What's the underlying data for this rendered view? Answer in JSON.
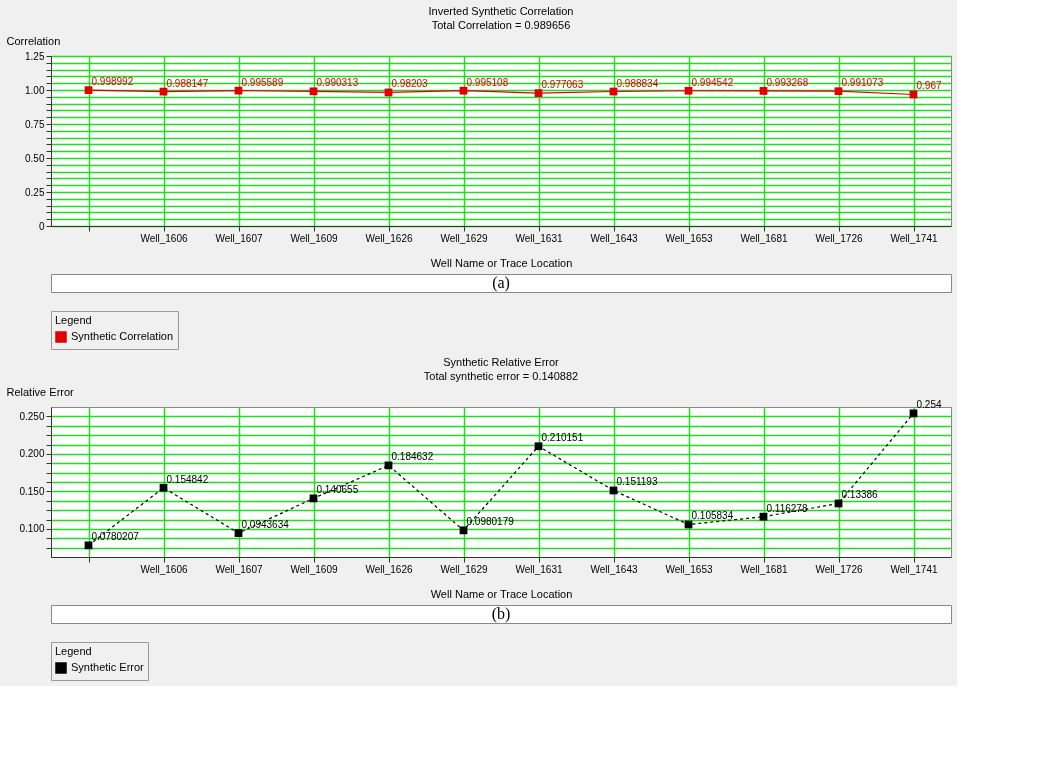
{
  "chart_data": [
    {
      "type": "line",
      "title": "Inverted Synthetic Correlation",
      "subtitle": "Total Correlation = 0.989656",
      "xlabel": "Well Name or Trace Location",
      "ylabel": "Correlation",
      "legend_title": "Legend",
      "categories": [
        null,
        "Well_1606",
        "Well_1607",
        "Well_1609",
        "Well_1626",
        "Well_1629",
        "Well_1631",
        "Well_1643",
        "Well_1653",
        "Well_1681",
        "Well_1726",
        "Well_1741"
      ],
      "series": [
        {
          "name": "Synthetic Correlation",
          "color": "#e00000",
          "values": [
            0.998992,
            0.988147,
            0.995589,
            0.990313,
            0.98203,
            0.995108,
            0.977063,
            0.988834,
            0.994542,
            0.993268,
            0.991073,
            0.967
          ]
        }
      ],
      "ylim": [
        0,
        1.25
      ],
      "yticks": [
        0,
        {
          "value": 0.05,
          "label": null
        },
        {
          "value": 0.1,
          "label": null
        },
        {
          "value": 0.15,
          "label": null
        },
        {
          "value": 0.2,
          "label": null
        },
        0.25,
        {
          "value": 0.3,
          "label": null
        },
        {
          "value": 0.35,
          "label": null
        },
        {
          "value": 0.4,
          "label": null
        },
        {
          "value": 0.45,
          "label": null
        },
        {
          "value": 0.5,
          "label": "0.50"
        },
        {
          "value": 0.55,
          "label": null
        },
        {
          "value": 0.6,
          "label": null
        },
        {
          "value": 0.65,
          "label": null
        },
        {
          "value": 0.7,
          "label": null
        },
        0.75,
        {
          "value": 0.8,
          "label": null
        },
        {
          "value": 0.85,
          "label": null
        },
        {
          "value": 0.9,
          "label": null
        },
        {
          "value": 0.95,
          "label": null
        },
        {
          "value": 1,
          "label": "1.00"
        },
        {
          "value": 1.05,
          "label": null
        },
        {
          "value": 1.1,
          "label": null
        },
        {
          "value": 1.15,
          "label": null
        },
        {
          "value": 1.2,
          "label": null
        },
        1.25
      ],
      "grid": true,
      "legend": "bottom left",
      "marker": "square",
      "line_style": "solid",
      "data_labels": true,
      "annotations": [
        "(a)"
      ]
    },
    {
      "type": "line",
      "title": "Synthetic Relative Error",
      "subtitle": "Total synthetic error = 0.140882",
      "xlabel": "Well Name or Trace Location",
      "ylabel": "Relative Error",
      "legend_title": "Legend",
      "categories": [
        null,
        "Well_1606",
        "Well_1607",
        "Well_1609",
        "Well_1626",
        "Well_1629",
        "Well_1631",
        "Well_1643",
        "Well_1653",
        "Well_1681",
        "Well_1726",
        "Well_1741"
      ],
      "series": [
        {
          "name": "Synthetic Error",
          "color": "#000000",
          "values": [
            0.0780207,
            0.154842,
            0.0943634,
            0.140655,
            0.184632,
            0.0980179,
            0.210151,
            0.151193,
            0.105834,
            0.116278,
            0.13386,
            0.254
          ]
        }
      ],
      "ylim": [
        0.0625,
        0.2625
      ],
      "yticks": [
        {
          "value": 0.075,
          "label": null
        },
        {
          "value": 0.0875,
          "label": null
        },
        {
          "value": 0.1,
          "label": "0.100"
        },
        {
          "value": 0.1125,
          "label": null
        },
        {
          "value": 0.125,
          "label": null
        },
        {
          "value": 0.1375,
          "label": null
        },
        {
          "value": 0.15,
          "label": "0.150"
        },
        {
          "value": 0.1625,
          "label": null
        },
        {
          "value": 0.175,
          "label": null
        },
        {
          "value": 0.1875,
          "label": null
        },
        {
          "value": 0.2,
          "label": "0.200"
        },
        {
          "value": 0.2125,
          "label": null
        },
        {
          "value": 0.225,
          "label": null
        },
        {
          "value": 0.2375,
          "label": null
        },
        {
          "value": 0.25,
          "label": "0.250"
        }
      ],
      "grid": true,
      "legend": "bottom left",
      "marker": "square",
      "line_style": "dashed",
      "data_labels": true,
      "annotations": [
        "(b)"
      ]
    }
  ]
}
